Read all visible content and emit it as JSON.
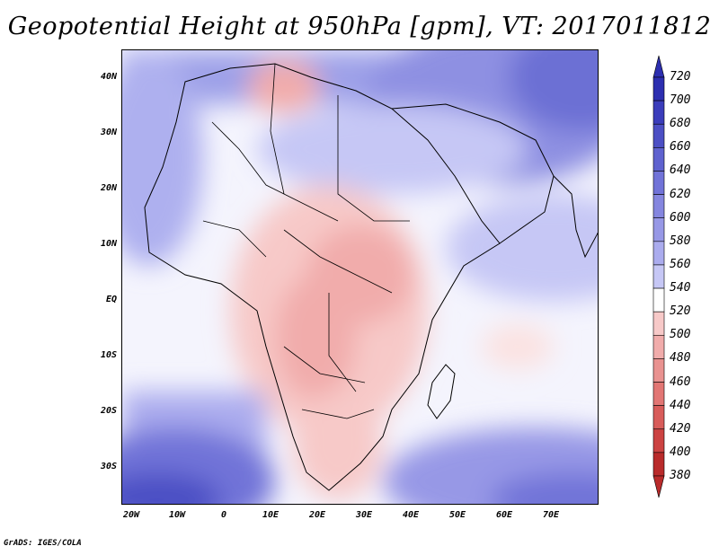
{
  "title": "Geopotential Height at 950hPa [gpm], VT: 2017011812",
  "credit": "GrADS: IGES/COLA",
  "map": {
    "variable": "Geopotential Height at 950hPa",
    "units": "gpm",
    "valid_time": "2017011812",
    "region": "Africa",
    "lon_labels": [
      "20W",
      "10W",
      "0",
      "10E",
      "20E",
      "30E",
      "40E",
      "50E",
      "60E",
      "70E"
    ],
    "lat_labels": [
      "40N",
      "30N",
      "20N",
      "10N",
      "EQ",
      "10S",
      "20S",
      "30S"
    ]
  },
  "colorbar": {
    "levels": [
      "720",
      "700",
      "680",
      "660",
      "640",
      "620",
      "600",
      "580",
      "560",
      "540",
      "520",
      "500",
      "480",
      "460",
      "440",
      "420",
      "400",
      "380"
    ],
    "colors": [
      "#2d2fb0",
      "#3b3dbb",
      "#4c4fc4",
      "#5f62cf",
      "#7173d8",
      "#8586df",
      "#9798e6",
      "#abacee",
      "#c6c7f5",
      "#ffffff",
      "#f7c9c8",
      "#f1acab",
      "#e99290",
      "#e27674",
      "#d85c5a",
      "#cc4342",
      "#b92b2b"
    ]
  }
}
